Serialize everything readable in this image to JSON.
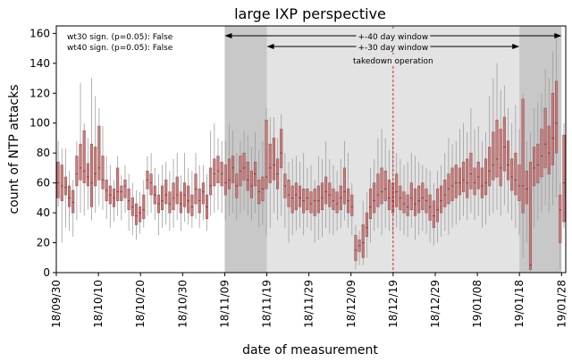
{
  "chart_data": {
    "type": "box",
    "title": "large IXP perspective",
    "xlabel": "date of measurement",
    "ylabel": "count of NTP attacks",
    "ylim": [
      0,
      165
    ],
    "yticks": [
      0,
      20,
      40,
      60,
      80,
      100,
      120,
      140,
      160
    ],
    "xticks": [
      "18/09/30",
      "18/10/10",
      "18/10/20",
      "18/10/30",
      "18/11/09",
      "18/11/19",
      "18/11/29",
      "18/12/09",
      "18/12/19",
      "18/12/29",
      "19/01/08",
      "19/01/18",
      "19/01/28"
    ],
    "x_start": "2018-09-30",
    "x_end": "2019-01-29",
    "significance": [
      "wt30 sign. (p=0.05): False",
      "wt40 sign. (p=0.05): False"
    ],
    "window40": {
      "label": "+-40 day window",
      "start": "2018-11-09",
      "end": "2019-01-28"
    },
    "window30": {
      "label": "+-30 day window",
      "start": "2018-11-19",
      "end": "2019-01-18"
    },
    "event": {
      "label": "takedown operation",
      "date": "2018-12-19"
    },
    "colors": {
      "box_fill": "#c97c7c",
      "box_edge": "#8a4a4a",
      "whisker": "#9e9e9e",
      "shade40": "#c8c8c8",
      "shade30": "#e3e3e3",
      "event_line": "#d62728"
    },
    "series": [
      {
        "min": 44,
        "q1": 50,
        "median": 60,
        "q3": 74,
        "max": 88
      },
      {
        "min": 20,
        "q1": 48,
        "median": 58,
        "q3": 72,
        "max": 83
      },
      {
        "min": 30,
        "q1": 52,
        "median": 57,
        "q3": 64,
        "max": 83
      },
      {
        "min": 28,
        "q1": 44,
        "median": 50,
        "q3": 58,
        "max": 68
      },
      {
        "min": 24,
        "q1": 40,
        "median": 47,
        "q3": 55,
        "max": 62
      },
      {
        "min": 35,
        "q1": 58,
        "median": 66,
        "q3": 78,
        "max": 88
      },
      {
        "min": 40,
        "q1": 62,
        "median": 70,
        "q3": 86,
        "max": 127
      },
      {
        "min": 38,
        "q1": 60,
        "median": 68,
        "q3": 95,
        "max": 100
      },
      {
        "min": 42,
        "q1": 58,
        "median": 64,
        "q3": 73,
        "max": 90
      },
      {
        "min": 35,
        "q1": 44,
        "median": 60,
        "q3": 86,
        "max": 130
      },
      {
        "min": 40,
        "q1": 58,
        "median": 66,
        "q3": 84,
        "max": 118
      },
      {
        "min": 45,
        "q1": 62,
        "median": 70,
        "q3": 98,
        "max": 110
      },
      {
        "min": 42,
        "q1": 56,
        "median": 62,
        "q3": 78,
        "max": 98
      },
      {
        "min": 36,
        "q1": 48,
        "median": 55,
        "q3": 62,
        "max": 78
      },
      {
        "min": 30,
        "q1": 46,
        "median": 52,
        "q3": 58,
        "max": 72
      },
      {
        "min": 34,
        "q1": 44,
        "median": 50,
        "q3": 56,
        "max": 62
      },
      {
        "min": 38,
        "q1": 48,
        "median": 54,
        "q3": 70,
        "max": 78
      },
      {
        "min": 35,
        "q1": 48,
        "median": 54,
        "q3": 58,
        "max": 65
      },
      {
        "min": 40,
        "q1": 50,
        "median": 58,
        "q3": 62,
        "max": 72
      },
      {
        "min": 28,
        "q1": 42,
        "median": 48,
        "q3": 56,
        "max": 66
      },
      {
        "min": 25,
        "q1": 38,
        "median": 44,
        "q3": 50,
        "max": 60
      },
      {
        "min": 22,
        "q1": 32,
        "median": 38,
        "q3": 46,
        "max": 55
      },
      {
        "min": 26,
        "q1": 34,
        "median": 40,
        "q3": 44,
        "max": 54
      },
      {
        "min": 30,
        "q1": 36,
        "median": 42,
        "q3": 52,
        "max": 62
      },
      {
        "min": 38,
        "q1": 56,
        "median": 62,
        "q3": 68,
        "max": 78
      },
      {
        "min": 40,
        "q1": 52,
        "median": 60,
        "q3": 66,
        "max": 80
      },
      {
        "min": 35,
        "q1": 46,
        "median": 52,
        "q3": 58,
        "max": 70
      },
      {
        "min": 25,
        "q1": 40,
        "median": 46,
        "q3": 52,
        "max": 66
      },
      {
        "min": 30,
        "q1": 42,
        "median": 48,
        "q3": 58,
        "max": 72
      },
      {
        "min": 32,
        "q1": 46,
        "median": 52,
        "q3": 62,
        "max": 74
      },
      {
        "min": 28,
        "q1": 40,
        "median": 46,
        "q3": 54,
        "max": 68
      },
      {
        "min": 30,
        "q1": 42,
        "median": 50,
        "q3": 60,
        "max": 76
      },
      {
        "min": 35,
        "q1": 46,
        "median": 52,
        "q3": 64,
        "max": 80
      },
      {
        "min": 28,
        "q1": 40,
        "median": 46,
        "q3": 54,
        "max": 65
      },
      {
        "min": 34,
        "q1": 44,
        "median": 52,
        "q3": 60,
        "max": 80
      },
      {
        "min": 32,
        "q1": 40,
        "median": 48,
        "q3": 58,
        "max": 70
      },
      {
        "min": 30,
        "q1": 38,
        "median": 44,
        "q3": 52,
        "max": 68
      },
      {
        "min": 36,
        "q1": 46,
        "median": 56,
        "q3": 66,
        "max": 80
      },
      {
        "min": 30,
        "q1": 40,
        "median": 48,
        "q3": 56,
        "max": 72
      },
      {
        "min": 35,
        "q1": 46,
        "median": 54,
        "q3": 60,
        "max": 72
      },
      {
        "min": 28,
        "q1": 36,
        "median": 44,
        "q3": 52,
        "max": 66
      },
      {
        "min": 38,
        "q1": 52,
        "median": 58,
        "q3": 70,
        "max": 95
      },
      {
        "min": 40,
        "q1": 58,
        "median": 66,
        "q3": 76,
        "max": 100
      },
      {
        "min": 42,
        "q1": 60,
        "median": 68,
        "q3": 78,
        "max": 90
      },
      {
        "min": 40,
        "q1": 58,
        "median": 66,
        "q3": 74,
        "max": 88
      },
      {
        "min": 35,
        "q1": 52,
        "median": 60,
        "q3": 72,
        "max": 88
      },
      {
        "min": 38,
        "q1": 56,
        "median": 62,
        "q3": 76,
        "max": 100
      },
      {
        "min": 40,
        "q1": 60,
        "median": 70,
        "q3": 78,
        "max": 95
      },
      {
        "min": 35,
        "q1": 50,
        "median": 58,
        "q3": 66,
        "max": 80
      },
      {
        "min": 40,
        "q1": 58,
        "median": 68,
        "q3": 78,
        "max": 88
      },
      {
        "min": 42,
        "q1": 62,
        "median": 70,
        "q3": 80,
        "max": 95
      },
      {
        "min": 38,
        "q1": 55,
        "median": 62,
        "q3": 74,
        "max": 92
      },
      {
        "min": 35,
        "q1": 50,
        "median": 58,
        "q3": 68,
        "max": 84
      },
      {
        "min": 40,
        "q1": 58,
        "median": 66,
        "q3": 74,
        "max": 94
      },
      {
        "min": 30,
        "q1": 46,
        "median": 54,
        "q3": 62,
        "max": 82
      },
      {
        "min": 32,
        "q1": 48,
        "median": 56,
        "q3": 64,
        "max": 88
      },
      {
        "min": 25,
        "q1": 56,
        "median": 64,
        "q3": 102,
        "max": 110
      },
      {
        "min": 30,
        "q1": 60,
        "median": 70,
        "q3": 86,
        "max": 104
      },
      {
        "min": 40,
        "q1": 62,
        "median": 72,
        "q3": 90,
        "max": 104
      },
      {
        "min": 35,
        "q1": 56,
        "median": 66,
        "q3": 76,
        "max": 90
      },
      {
        "min": 38,
        "q1": 70,
        "median": 80,
        "q3": 96,
        "max": 106
      },
      {
        "min": 30,
        "q1": 50,
        "median": 58,
        "q3": 66,
        "max": 80
      },
      {
        "min": 20,
        "q1": 44,
        "median": 52,
        "q3": 62,
        "max": 74
      },
      {
        "min": 25,
        "q1": 40,
        "median": 50,
        "q3": 58,
        "max": 76
      },
      {
        "min": 28,
        "q1": 42,
        "median": 52,
        "q3": 60,
        "max": 78
      },
      {
        "min": 30,
        "q1": 44,
        "median": 50,
        "q3": 58,
        "max": 74
      },
      {
        "min": 25,
        "q1": 40,
        "median": 48,
        "q3": 56,
        "max": 80
      },
      {
        "min": 30,
        "q1": 42,
        "median": 50,
        "q3": 56,
        "max": 70
      },
      {
        "min": 28,
        "q1": 40,
        "median": 46,
        "q3": 54,
        "max": 72
      },
      {
        "min": 20,
        "q1": 38,
        "median": 48,
        "q3": 56,
        "max": 62
      },
      {
        "min": 22,
        "q1": 40,
        "median": 48,
        "q3": 58,
        "max": 78
      },
      {
        "min": 24,
        "q1": 42,
        "median": 50,
        "q3": 60,
        "max": 76
      },
      {
        "min": 30,
        "q1": 46,
        "median": 54,
        "q3": 64,
        "max": 88
      },
      {
        "min": 26,
        "q1": 44,
        "median": 52,
        "q3": 60,
        "max": 76
      },
      {
        "min": 25,
        "q1": 42,
        "median": 48,
        "q3": 56,
        "max": 72
      },
      {
        "min": 28,
        "q1": 40,
        "median": 46,
        "q3": 54,
        "max": 68
      },
      {
        "min": 30,
        "q1": 42,
        "median": 50,
        "q3": 58,
        "max": 76
      },
      {
        "min": 35,
        "q1": 46,
        "median": 54,
        "q3": 70,
        "max": 88
      },
      {
        "min": 30,
        "q1": 40,
        "median": 48,
        "q3": 56,
        "max": 80
      },
      {
        "min": 25,
        "q1": 38,
        "median": 44,
        "q3": 52,
        "max": 60
      },
      {
        "min": 2,
        "q1": 8,
        "median": 15,
        "q3": 25,
        "max": 32
      },
      {
        "min": 5,
        "q1": 14,
        "median": 18,
        "q3": 22,
        "max": 28
      },
      {
        "min": 5,
        "q1": 10,
        "median": 20,
        "q3": 32,
        "max": 48
      },
      {
        "min": 10,
        "q1": 24,
        "median": 30,
        "q3": 40,
        "max": 54
      },
      {
        "min": 20,
        "q1": 36,
        "median": 44,
        "q3": 56,
        "max": 70
      },
      {
        "min": 28,
        "q1": 40,
        "median": 48,
        "q3": 60,
        "max": 76
      },
      {
        "min": 30,
        "q1": 44,
        "median": 52,
        "q3": 66,
        "max": 90
      },
      {
        "min": 25,
        "q1": 46,
        "median": 54,
        "q3": 70,
        "max": 96
      },
      {
        "min": 30,
        "q1": 48,
        "median": 56,
        "q3": 68,
        "max": 90
      },
      {
        "min": 28,
        "q1": 42,
        "median": 50,
        "q3": 62,
        "max": 82
      },
      {
        "min": 25,
        "q1": 40,
        "median": 48,
        "q3": 60,
        "max": 88
      },
      {
        "min": 30,
        "q1": 44,
        "median": 54,
        "q3": 66,
        "max": 80
      },
      {
        "min": 28,
        "q1": 42,
        "median": 50,
        "q3": 58,
        "max": 76
      },
      {
        "min": 25,
        "q1": 40,
        "median": 46,
        "q3": 54,
        "max": 72
      },
      {
        "min": 24,
        "q1": 38,
        "median": 44,
        "q3": 52,
        "max": 74
      },
      {
        "min": 30,
        "q1": 42,
        "median": 50,
        "q3": 60,
        "max": 80
      },
      {
        "min": 22,
        "q1": 38,
        "median": 46,
        "q3": 56,
        "max": 78
      },
      {
        "min": 25,
        "q1": 40,
        "median": 48,
        "q3": 58,
        "max": 74
      },
      {
        "min": 28,
        "q1": 42,
        "median": 50,
        "q3": 60,
        "max": 72
      },
      {
        "min": 26,
        "q1": 40,
        "median": 48,
        "q3": 56,
        "max": 70
      },
      {
        "min": 20,
        "q1": 35,
        "median": 44,
        "q3": 52,
        "max": 68
      },
      {
        "min": 18,
        "q1": 30,
        "median": 38,
        "q3": 48,
        "max": 60
      },
      {
        "min": 20,
        "q1": 34,
        "median": 42,
        "q3": 56,
        "max": 68
      },
      {
        "min": 24,
        "q1": 40,
        "median": 48,
        "q3": 58,
        "max": 72
      },
      {
        "min": 28,
        "q1": 44,
        "median": 52,
        "q3": 62,
        "max": 80
      },
      {
        "min": 25,
        "q1": 46,
        "median": 56,
        "q3": 66,
        "max": 90
      },
      {
        "min": 30,
        "q1": 48,
        "median": 58,
        "q3": 70,
        "max": 86
      },
      {
        "min": 32,
        "q1": 50,
        "median": 60,
        "q3": 72,
        "max": 88
      },
      {
        "min": 35,
        "q1": 52,
        "median": 60,
        "q3": 70,
        "max": 96
      },
      {
        "min": 38,
        "q1": 54,
        "median": 62,
        "q3": 74,
        "max": 100
      },
      {
        "min": 35,
        "q1": 50,
        "median": 60,
        "q3": 76,
        "max": 94
      },
      {
        "min": 40,
        "q1": 56,
        "median": 66,
        "q3": 80,
        "max": 110
      },
      {
        "min": 35,
        "q1": 52,
        "median": 60,
        "q3": 70,
        "max": 96
      },
      {
        "min": 38,
        "q1": 56,
        "median": 64,
        "q3": 74,
        "max": 98
      },
      {
        "min": 30,
        "q1": 50,
        "median": 58,
        "q3": 70,
        "max": 88
      },
      {
        "min": 32,
        "q1": 52,
        "median": 60,
        "q3": 76,
        "max": 94
      },
      {
        "min": 38,
        "q1": 58,
        "median": 68,
        "q3": 84,
        "max": 118
      },
      {
        "min": 40,
        "q1": 62,
        "median": 72,
        "q3": 94,
        "max": 130
      },
      {
        "min": 42,
        "q1": 64,
        "median": 76,
        "q3": 102,
        "max": 140
      },
      {
        "min": 38,
        "q1": 58,
        "median": 70,
        "q3": 96,
        "max": 122
      },
      {
        "min": 45,
        "q1": 68,
        "median": 84,
        "q3": 104,
        "max": 125
      },
      {
        "min": 40,
        "q1": 62,
        "median": 72,
        "q3": 88,
        "max": 110
      },
      {
        "min": 35,
        "q1": 55,
        "median": 64,
        "q3": 76,
        "max": 100
      },
      {
        "min": 30,
        "q1": 52,
        "median": 62,
        "q3": 80,
        "max": 112
      },
      {
        "min": 25,
        "q1": 48,
        "median": 58,
        "q3": 72,
        "max": 96
      },
      {
        "min": 10,
        "q1": 40,
        "median": 58,
        "q3": 116,
        "max": 120
      },
      {
        "min": 20,
        "q1": 46,
        "median": 56,
        "q3": 68,
        "max": 88
      },
      {
        "min": 1,
        "q1": 2,
        "median": 5,
        "q3": 74,
        "max": 94
      },
      {
        "min": 30,
        "q1": 58,
        "median": 70,
        "q3": 84,
        "max": 110
      },
      {
        "min": 35,
        "q1": 60,
        "median": 72,
        "q3": 86,
        "max": 114
      },
      {
        "min": 40,
        "q1": 64,
        "median": 78,
        "q3": 96,
        "max": 120
      },
      {
        "min": 45,
        "q1": 70,
        "median": 86,
        "q3": 110,
        "max": 136
      },
      {
        "min": 40,
        "q1": 66,
        "median": 80,
        "q3": 98,
        "max": 130
      },
      {
        "min": 45,
        "q1": 72,
        "median": 90,
        "q3": 120,
        "max": 148
      },
      {
        "min": 50,
        "q1": 80,
        "median": 100,
        "q3": 128,
        "max": 160
      },
      {
        "min": 2,
        "q1": 20,
        "median": 42,
        "q3": 52,
        "max": 60
      },
      {
        "min": 30,
        "q1": 34,
        "median": 60,
        "q3": 92,
        "max": 100
      }
    ]
  }
}
